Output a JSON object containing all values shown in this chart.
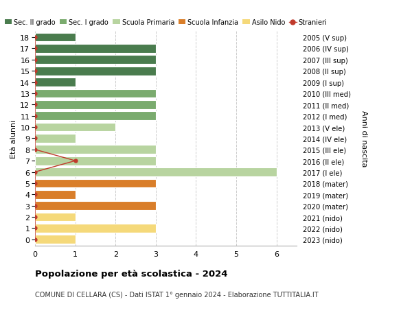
{
  "ages": [
    18,
    17,
    16,
    15,
    14,
    13,
    12,
    11,
    10,
    9,
    8,
    7,
    6,
    5,
    4,
    3,
    2,
    1,
    0
  ],
  "right_labels": [
    "2005 (V sup)",
    "2006 (IV sup)",
    "2007 (III sup)",
    "2008 (II sup)",
    "2009 (I sup)",
    "2010 (III med)",
    "2011 (II med)",
    "2012 (I med)",
    "2013 (V ele)",
    "2014 (IV ele)",
    "2015 (III ele)",
    "2016 (II ele)",
    "2017 (I ele)",
    "2018 (mater)",
    "2019 (mater)",
    "2020 (mater)",
    "2021 (nido)",
    "2022 (nido)",
    "2023 (nido)"
  ],
  "bar_values": [
    1,
    3,
    3,
    3,
    1,
    3,
    3,
    3,
    2,
    1,
    3,
    3,
    6,
    3,
    1,
    3,
    1,
    3,
    1
  ],
  "bar_colors": [
    "#4a7c4e",
    "#4a7c4e",
    "#4a7c4e",
    "#4a7c4e",
    "#4a7c4e",
    "#7aab6e",
    "#7aab6e",
    "#7aab6e",
    "#b8d4a0",
    "#b8d4a0",
    "#b8d4a0",
    "#b8d4a0",
    "#b8d4a0",
    "#d97e2a",
    "#d97e2a",
    "#d97e2a",
    "#f5d97a",
    "#f5d97a",
    "#f5d97a"
  ],
  "stranieri_values": [
    0,
    0,
    0,
    0,
    0,
    0,
    0,
    0,
    0,
    0,
    0,
    1,
    0,
    0,
    0,
    0,
    0,
    0,
    0
  ],
  "legend_labels": [
    "Sec. II grado",
    "Sec. I grado",
    "Scuola Primaria",
    "Scuola Infanzia",
    "Asilo Nido",
    "Stranieri"
  ],
  "legend_colors": [
    "#4a7c4e",
    "#7aab6e",
    "#b8d4a0",
    "#d97e2a",
    "#f5d97a",
    "#c0392b"
  ],
  "title": "Popolazione per età scolastica - 2024",
  "subtitle": "COMUNE DI CELLARA (CS) - Dati ISTAT 1° gennaio 2024 - Elaborazione TUTTITALIA.IT",
  "ylabel_left": "Età alunni",
  "ylabel_right": "Anni di nascita",
  "xlim": [
    0,
    6.5
  ],
  "xticks": [
    0,
    1,
    2,
    3,
    4,
    5,
    6
  ],
  "background_color": "#ffffff",
  "grid_color": "#cccccc",
  "stranieri_color": "#c0392b",
  "bar_height": 0.78
}
